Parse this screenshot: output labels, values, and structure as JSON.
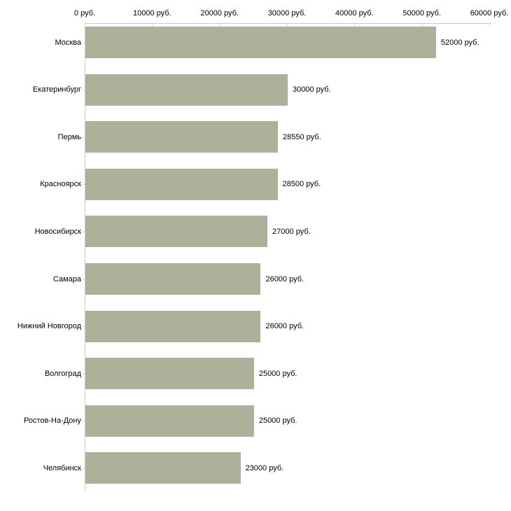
{
  "chart_data": {
    "type": "bar",
    "orientation": "horizontal",
    "title": "",
    "xlabel": "",
    "ylabel": "",
    "currency_suffix": "руб.",
    "categories": [
      "Москва",
      "Екатеринбург",
      "Пермь",
      "Красноярск",
      "Новосибирск",
      "Самара",
      "Нижний Новгород",
      "Волгоград",
      "Ростов-На-Дону",
      "Челябинск"
    ],
    "values": [
      52000,
      30000,
      28550,
      28500,
      27000,
      26000,
      26000,
      25000,
      25000,
      23000
    ],
    "value_labels": [
      "52000 руб.",
      "30000 руб.",
      "28550 руб.",
      "28500 руб.",
      "27000 руб.",
      "26000 руб.",
      "26000 руб.",
      "25000 руб.",
      "25000 руб.",
      "23000 руб."
    ],
    "x_ticks": [
      0,
      10000,
      20000,
      30000,
      40000,
      50000,
      60000
    ],
    "x_tick_labels": [
      "0 руб.",
      "10000 руб.",
      "20000 руб.",
      "30000 руб.",
      "40000 руб.",
      "50000 руб.",
      "60000 руб."
    ],
    "xlim": [
      0,
      60000
    ],
    "grid": false,
    "legend": null,
    "colors": {
      "bar_fill": "#acb299",
      "axis_line": "#c9c9c9",
      "tick_mark": "#d9dbb6",
      "label_text": "#000000",
      "background": "#ffffff"
    }
  }
}
